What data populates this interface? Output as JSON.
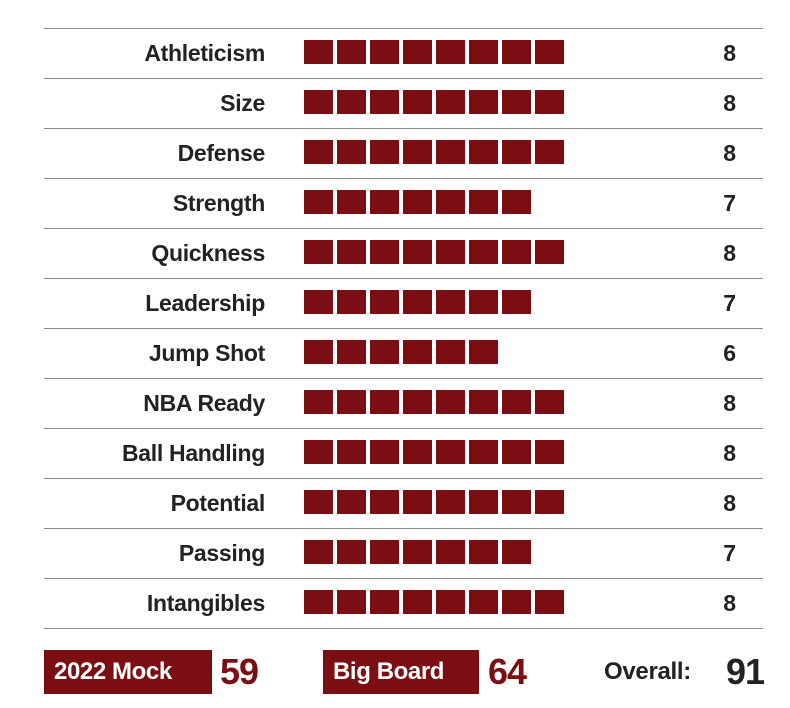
{
  "chart_data": {
    "type": "bar",
    "categories": [
      "Athleticism",
      "Size",
      "Defense",
      "Strength",
      "Quickness",
      "Leadership",
      "Jump Shot",
      "NBA Ready",
      "Ball Handling",
      "Potential",
      "Passing",
      "Intangibles"
    ],
    "values": [
      8,
      8,
      8,
      7,
      8,
      7,
      6,
      8,
      8,
      8,
      7,
      8
    ],
    "bar_color": "#7a0e12"
  },
  "footer": {
    "mock_label": "2022 Mock",
    "mock_value": "59",
    "board_label": "Big Board",
    "board_value": "64",
    "overall_label": "Overall:",
    "overall_value": "91",
    "badge_color": "#7a0e12"
  }
}
